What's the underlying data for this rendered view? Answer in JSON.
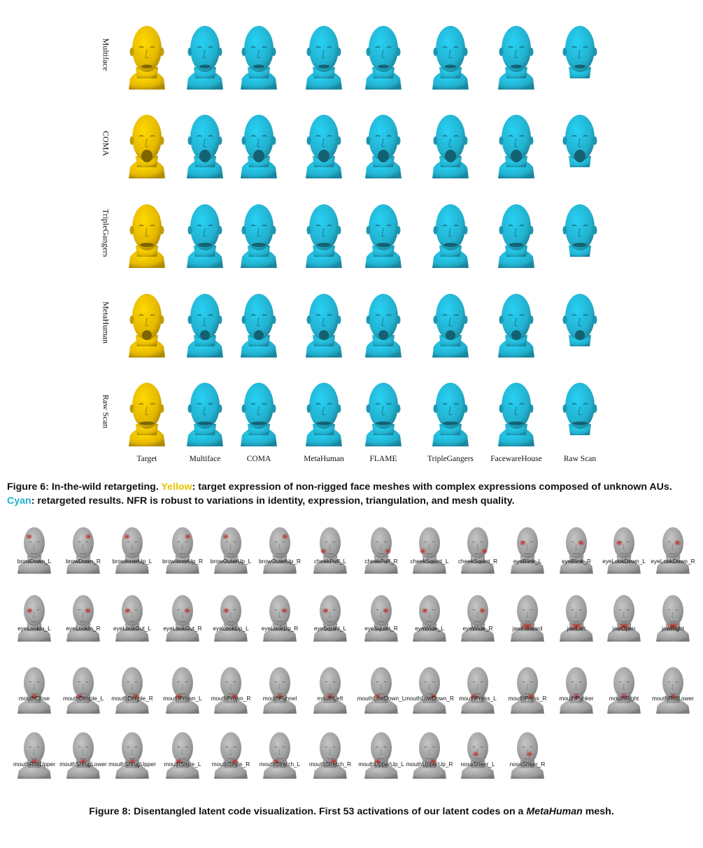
{
  "figure6": {
    "row_labels": [
      "Multiface",
      "COMA",
      "TripleGangers",
      "MetaHuman",
      "Raw Scan"
    ],
    "column_labels": [
      "Target",
      "Multiface",
      "COMA",
      "MetaHuman",
      "FLAME",
      "TripleGangers",
      "FacewareHouse",
      "Raw Scan"
    ],
    "colors": {
      "target": "#e5b800",
      "retargeted": "#22b1cf"
    },
    "caption": {
      "prefix": "Figure 6:  In-the-wild retargeting. ",
      "yellow_word": "Yellow",
      "mid": ": target expression of non-rigged face meshes with complex expressions composed of unknown AUs. ",
      "cyan_word": "Cyan",
      "suffix": ": retargeted results. NFR is robust to variations in identity, expression, triangulation, and mesh quality."
    }
  },
  "figure8": {
    "labels": [
      "browDown_L",
      "browDown_R",
      "browInnerUp_L",
      "browInnerUp_R",
      "browOuterUp_L",
      "browOuterUp_R",
      "cheekPuff_L",
      "cheekPuff_R",
      "cheekSquint_L",
      "cheekSquint_R",
      "eyeBlink_L",
      "eyeBlink_R",
      "eyeLookDown_L",
      "eyeLookDown_R",
      "eyeLookIn_L",
      "eyeLookIn_R",
      "eyeLookOut_L",
      "eyeLookOut_R",
      "eyeLookUp_L",
      "eyeLookUp_R",
      "eyeSquint_L",
      "eyeSquint_R",
      "eyeWide_L",
      "eyeWide_R",
      "jawForward",
      "jawLeft",
      "jawOpen",
      "jawRight",
      "mouthClose",
      "mouthDimple_L",
      "mouthDimple_R",
      "mouthFrown_L",
      "mouthFrown_R",
      "mouthFunnel",
      "mouthLeft",
      "mouthLowDown_L",
      "mouthLowDown_R",
      "mouthPress_L",
      "mouthPress_R",
      "mouthPunker",
      "mouthRight",
      "mouthRollLower",
      "mouthRollUpper",
      "mouthShrugLower",
      "mouthShrugUpper",
      "mouthSmile_L",
      "mouthSmile_R",
      "mouthStretch_L",
      "mouthStretch_R",
      "mouthUpperUp_L",
      "mouthUpperUp_R",
      "noseSneer_L",
      "noseSneer_R"
    ],
    "colors": {
      "mesh": "#9a9a9a",
      "activation": "#c0261c"
    },
    "caption": {
      "prefix": "Figure 8: Disentangled latent code visualization. First 53 activations of our latent codes on a ",
      "emph": "MetaHuman",
      "suffix": " mesh."
    }
  }
}
